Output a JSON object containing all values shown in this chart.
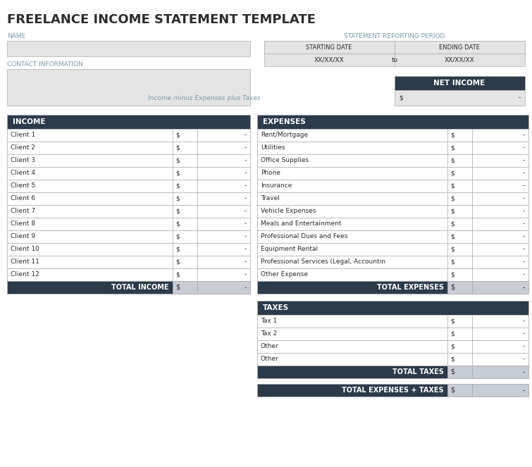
{
  "title": "FREELANCE INCOME STATEMENT TEMPLATE",
  "title_color": "#2d2d2d",
  "header_bg": "#2d3a4a",
  "header_text_color": "#ffffff",
  "label_color": "#7a9aaa",
  "cell_bg_light": "#e4e4e4",
  "cell_bg_white": "#ffffff",
  "cell_bg_total": "#c8ccd4",
  "border_color": "#b0b0b0",
  "italic_color": "#7a9aaa",
  "income_clients": [
    "Client 1",
    "Client 2",
    "Client 3",
    "Client 4",
    "Client 5",
    "Client 6",
    "Client 7",
    "Client 8",
    "Client 9",
    "Client 10",
    "Client 11",
    "Client 12"
  ],
  "expenses_items": [
    "Rent/Mortgage",
    "Utilities",
    "Office Supplies",
    "Phone",
    "Insurance",
    "Travel",
    "Vehicle Expenses",
    "Meals and Entertainment",
    "Professional Dues and Fees",
    "Equipment Rental",
    "Professional Services (Legal, Accountin",
    "Other Expense"
  ],
  "taxes_items": [
    "Tax 1",
    "Tax 2",
    "Other",
    "Other"
  ],
  "fig_bg": "#ffffff",
  "fig_w": 7.55,
  "fig_h": 6.63,
  "dpi": 100
}
